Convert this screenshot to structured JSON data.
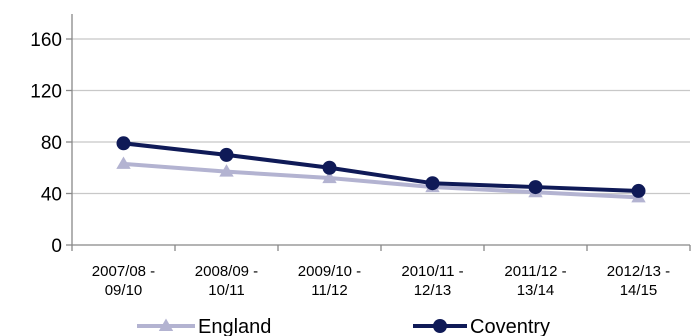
{
  "chart_data": {
    "type": "line",
    "title": "",
    "xlabel": "",
    "ylabel": "",
    "categories": [
      [
        "2007/08 -",
        "09/10"
      ],
      [
        "2008/09 -",
        "10/11"
      ],
      [
        "2009/10 -",
        "11/12"
      ],
      [
        "2010/11 -",
        "12/13"
      ],
      [
        "2011/12 -",
        "13/14"
      ],
      [
        "2012/13 -",
        "14/15"
      ]
    ],
    "ylim": [
      0,
      180
    ],
    "yticks": [
      "0",
      "40",
      "80",
      "120",
      "160"
    ],
    "grid": true,
    "legend_position": "bottom",
    "series": [
      {
        "name": "England",
        "color": "#b3b3d1",
        "marker": "triangle",
        "values": [
          63,
          57,
          52,
          45,
          41,
          37
        ]
      },
      {
        "name": "Coventry",
        "color": "#0f1a57",
        "marker": "circle",
        "values": [
          79,
          70,
          60,
          48,
          45,
          42
        ]
      }
    ]
  }
}
